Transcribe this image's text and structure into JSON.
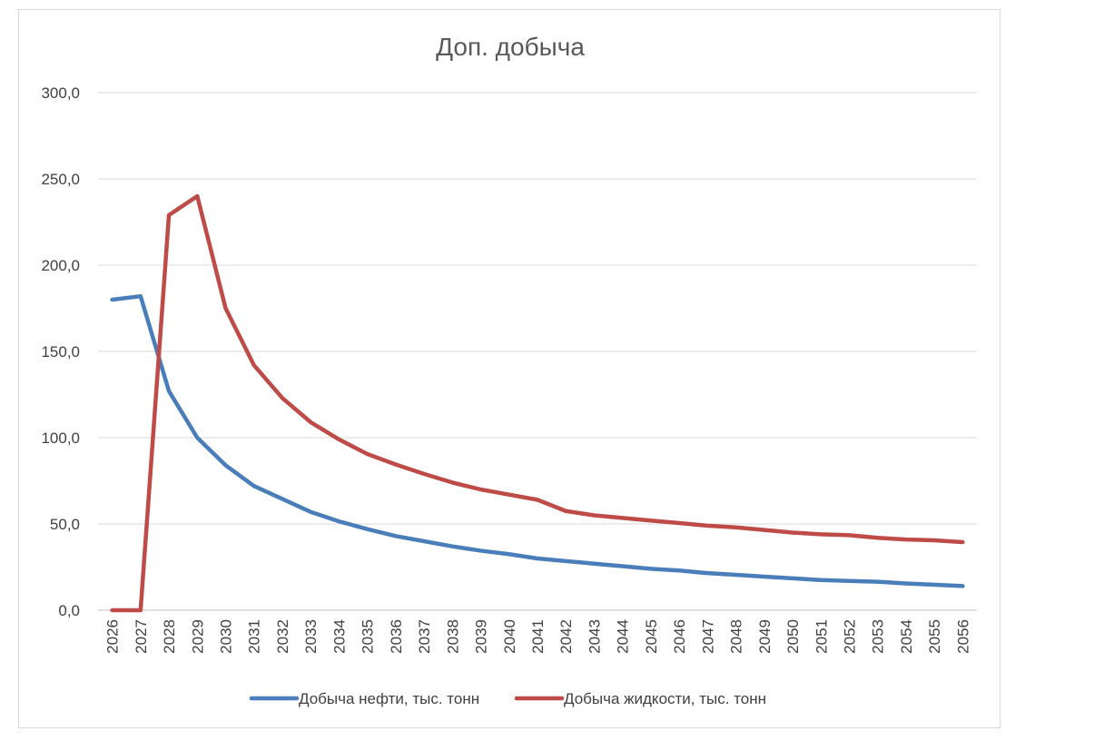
{
  "chart_data": {
    "type": "line",
    "title": "Доп. добыча",
    "xlabel": "",
    "ylabel": "",
    "ylim": [
      0,
      300
    ],
    "yticks": [
      "0,0",
      "50,0",
      "100,0",
      "150,0",
      "200,0",
      "250,0",
      "300,0"
    ],
    "ytick_values": [
      0,
      50,
      100,
      150,
      200,
      250,
      300
    ],
    "categories": [
      "2026",
      "2027",
      "2028",
      "2029",
      "2030",
      "2031",
      "2032",
      "2033",
      "2034",
      "2035",
      "2036",
      "2037",
      "2038",
      "2039",
      "2040",
      "2041",
      "2042",
      "2043",
      "2044",
      "2045",
      "2046",
      "2047",
      "2048",
      "2049",
      "2050",
      "2051",
      "2052",
      "2053",
      "2054",
      "2055",
      "2056"
    ],
    "grid": true,
    "legend_position": "bottom",
    "series": [
      {
        "name": "Добыча нефти, тыс. тонн",
        "color": "#4a7ebb",
        "values": [
          180.0,
          182.0,
          127.0,
          100.0,
          84.0,
          72.0,
          64.5,
          57.0,
          51.5,
          47.0,
          43.0,
          40.0,
          37.0,
          34.5,
          32.5,
          30.0,
          28.5,
          27.0,
          25.5,
          24.0,
          23.0,
          21.5,
          20.5,
          19.5,
          18.5,
          17.5,
          17.0,
          16.5,
          15.5,
          14.8,
          14.0
        ]
      },
      {
        "name": "Добыча жидкости, тыс. тонн",
        "color": "#be4b48",
        "values": [
          0.0,
          0.0,
          229.0,
          240.0,
          175.0,
          142.0,
          123.0,
          109.0,
          99.0,
          90.5,
          84.5,
          79.0,
          74.0,
          70.0,
          67.0,
          64.0,
          57.5,
          55.0,
          53.5,
          52.0,
          50.5,
          49.0,
          48.0,
          46.5,
          45.0,
          44.0,
          43.5,
          42.0,
          41.0,
          40.5,
          39.5
        ]
      }
    ]
  }
}
